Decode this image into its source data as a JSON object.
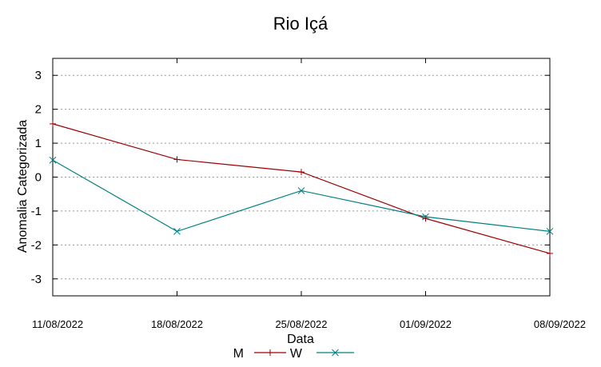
{
  "chart_data": {
    "type": "line",
    "title": "Rio Içá",
    "xlabel": "Data",
    "ylabel": "Anomalia Categorizada",
    "categories": [
      "11/08/2022",
      "18/08/2022",
      "25/08/2022",
      "01/09/2022",
      "08/09/2022"
    ],
    "ylim": [
      -3.5,
      3.5
    ],
    "yticks": [
      -3,
      -2,
      -1,
      0,
      1,
      2,
      3
    ],
    "ytick_labels": [
      "-3",
      "-2",
      "-1",
      "0",
      "1",
      "2",
      "3"
    ],
    "grid": true,
    "legend_position": "bottom-center",
    "series": [
      {
        "name": "M",
        "color": "#a00000",
        "marker": "plus",
        "values": [
          1.57,
          0.52,
          0.15,
          -1.22,
          -2.25
        ]
      },
      {
        "name": "W",
        "color": "#008080",
        "marker": "cross",
        "values": [
          0.5,
          -1.6,
          -0.4,
          -1.17,
          -1.6
        ]
      }
    ]
  }
}
